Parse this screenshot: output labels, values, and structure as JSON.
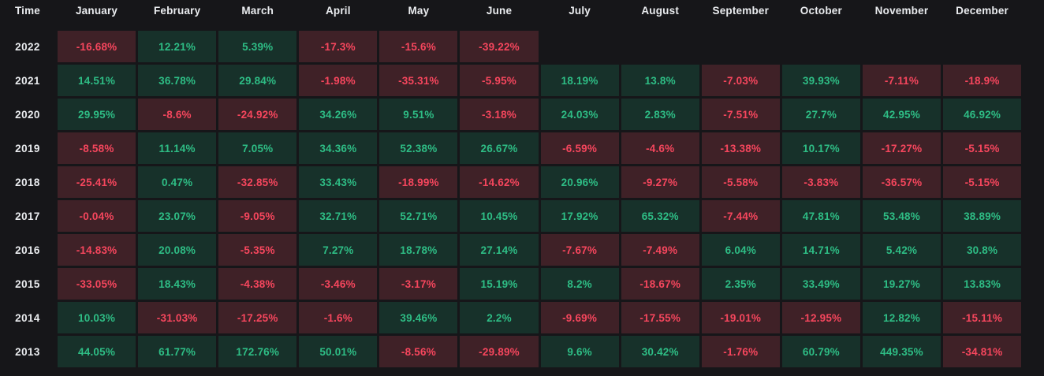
{
  "colors": {
    "page_bg": "#161619",
    "header_text": "#EAECEF",
    "positive_text": "#2EBD85",
    "positive_bg": "#17312A",
    "negative_text": "#F6465D",
    "negative_bg": "#3F2127"
  },
  "header": {
    "time_label": "Time"
  },
  "chart_data": {
    "type": "heatmap",
    "unit": "%",
    "columns": [
      "January",
      "February",
      "March",
      "April",
      "May",
      "June",
      "July",
      "August",
      "September",
      "October",
      "November",
      "December"
    ],
    "row_axis_label": "Time",
    "rows": [
      {
        "year": "2022",
        "values": [
          -16.68,
          12.21,
          5.39,
          -17.3,
          -15.6,
          -39.22,
          null,
          null,
          null,
          null,
          null,
          null
        ]
      },
      {
        "year": "2021",
        "values": [
          14.51,
          36.78,
          29.84,
          -1.98,
          -35.31,
          -5.95,
          18.19,
          13.8,
          -7.03,
          39.93,
          -7.11,
          -18.9
        ]
      },
      {
        "year": "2020",
        "values": [
          29.95,
          -8.6,
          -24.92,
          34.26,
          9.51,
          -3.18,
          24.03,
          2.83,
          -7.51,
          27.7,
          42.95,
          46.92
        ]
      },
      {
        "year": "2019",
        "values": [
          -8.58,
          11.14,
          7.05,
          34.36,
          52.38,
          26.67,
          -6.59,
          -4.6,
          -13.38,
          10.17,
          -17.27,
          -5.15
        ]
      },
      {
        "year": "2018",
        "values": [
          -25.41,
          0.47,
          -32.85,
          33.43,
          -18.99,
          -14.62,
          20.96,
          -9.27,
          -5.58,
          -3.83,
          -36.57,
          -5.15
        ]
      },
      {
        "year": "2017",
        "values": [
          -0.04,
          23.07,
          -9.05,
          32.71,
          52.71,
          10.45,
          17.92,
          65.32,
          -7.44,
          47.81,
          53.48,
          38.89
        ]
      },
      {
        "year": "2016",
        "values": [
          -14.83,
          20.08,
          -5.35,
          7.27,
          18.78,
          27.14,
          -7.67,
          -7.49,
          6.04,
          14.71,
          5.42,
          30.8
        ]
      },
      {
        "year": "2015",
        "values": [
          -33.05,
          18.43,
          -4.38,
          -3.46,
          -3.17,
          15.19,
          8.2,
          -18.67,
          2.35,
          33.49,
          19.27,
          13.83
        ]
      },
      {
        "year": "2014",
        "values": [
          10.03,
          -31.03,
          -17.25,
          -1.6,
          39.46,
          2.2,
          -9.69,
          -17.55,
          -19.01,
          -12.95,
          12.82,
          -15.11
        ]
      },
      {
        "year": "2013",
        "values": [
          44.05,
          61.77,
          172.76,
          50.01,
          -8.56,
          -29.89,
          9.6,
          30.42,
          -1.76,
          60.79,
          449.35,
          -34.81
        ]
      }
    ]
  }
}
